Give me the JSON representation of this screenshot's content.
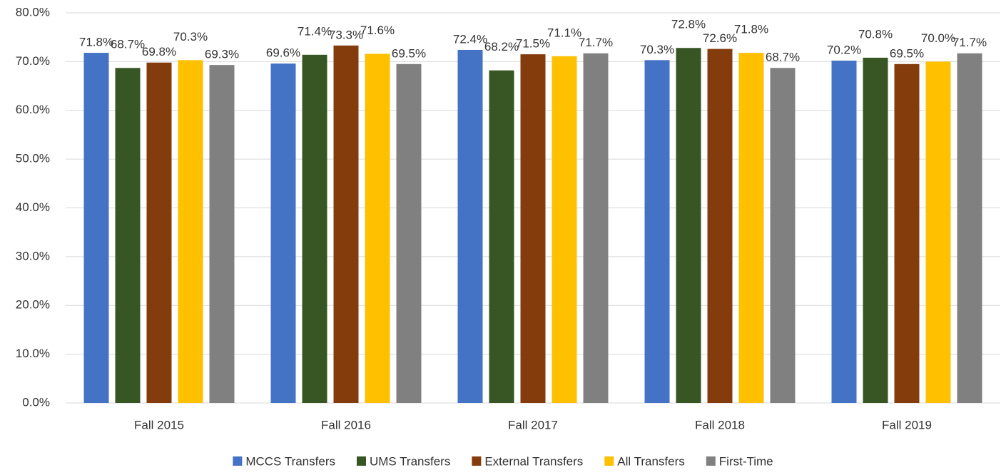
{
  "chart_data": {
    "type": "bar",
    "categories": [
      "Fall 2015",
      "Fall 2016",
      "Fall 2017",
      "Fall 2018",
      "Fall 2019"
    ],
    "series": [
      {
        "name": "MCCS Transfers",
        "color": "#4472c4",
        "values": [
          71.8,
          69.6,
          72.4,
          70.3,
          70.2
        ],
        "value_labels": [
          "71.8%",
          "69.6%",
          "72.4%",
          "70.3%",
          "70.2%"
        ]
      },
      {
        "name": "UMS Transfers",
        "color": "#375623",
        "values": [
          68.7,
          71.4,
          68.2,
          72.8,
          70.8
        ],
        "value_labels": [
          "68.7%",
          "71.4%",
          "68.2%",
          "72.8%",
          "70.8%"
        ]
      },
      {
        "name": "External Transfers",
        "color": "#843c0c",
        "values": [
          69.8,
          73.3,
          71.5,
          72.6,
          69.5
        ],
        "value_labels": [
          "69.8%",
          "73.3%",
          "71.5%",
          "72.6%",
          "69.5%"
        ]
      },
      {
        "name": "All Transfers",
        "color": "#ffc000",
        "values": [
          70.3,
          71.6,
          71.1,
          71.8,
          70.0
        ],
        "value_labels": [
          "70.3%",
          "71.6%",
          "71.1%",
          "71.8%",
          "70.0%"
        ]
      },
      {
        "name": "First-Time",
        "color": "#808080",
        "values": [
          69.3,
          69.5,
          71.7,
          68.7,
          71.7
        ],
        "value_labels": [
          "69.3%",
          "69.5%",
          "71.7%",
          "68.7%",
          "71.7%"
        ]
      }
    ],
    "ylim": [
      0,
      80
    ],
    "yticks": [
      {
        "value": 0,
        "label": "0.0%"
      },
      {
        "value": 10,
        "label": "10.0%"
      },
      {
        "value": 20,
        "label": "20.0%"
      },
      {
        "value": 30,
        "label": "30.0%"
      },
      {
        "value": 40,
        "label": "40.0%"
      },
      {
        "value": 50,
        "label": "50.0%"
      },
      {
        "value": 60,
        "label": "60.0%"
      },
      {
        "value": 70,
        "label": "70.0%"
      },
      {
        "value": 80,
        "label": "80.0%"
      }
    ],
    "grid": true,
    "legend": "bottom"
  }
}
